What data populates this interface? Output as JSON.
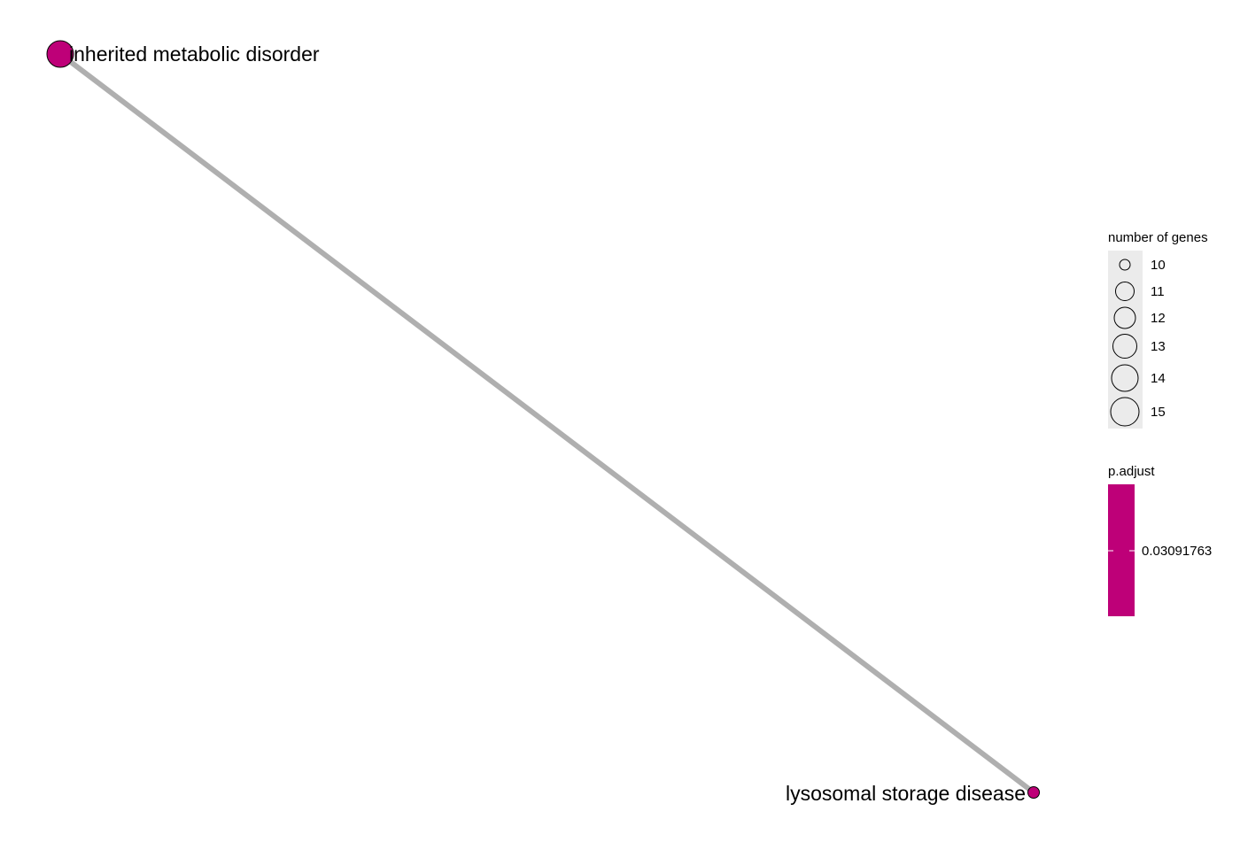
{
  "network": {
    "nodes": [
      {
        "label": "inherited metabolic disorder",
        "genes": 15,
        "p_adjust": 0.03091763,
        "color": "#BE0078"
      },
      {
        "label": "lysosomal storage disease",
        "genes": 10,
        "p_adjust": 0.03091763,
        "color": "#BE0078"
      }
    ],
    "edges": [
      {
        "source": "inherited metabolic disorder",
        "target": "lysosomal storage disease",
        "color": "#AFAFAF"
      }
    ]
  },
  "legend": {
    "size": {
      "title": "number of genes",
      "items": [
        "10",
        "11",
        "12",
        "13",
        "14",
        "15"
      ]
    },
    "color": {
      "title": "p.adjust",
      "label": "0.03091763",
      "color": "#BE0078"
    }
  }
}
